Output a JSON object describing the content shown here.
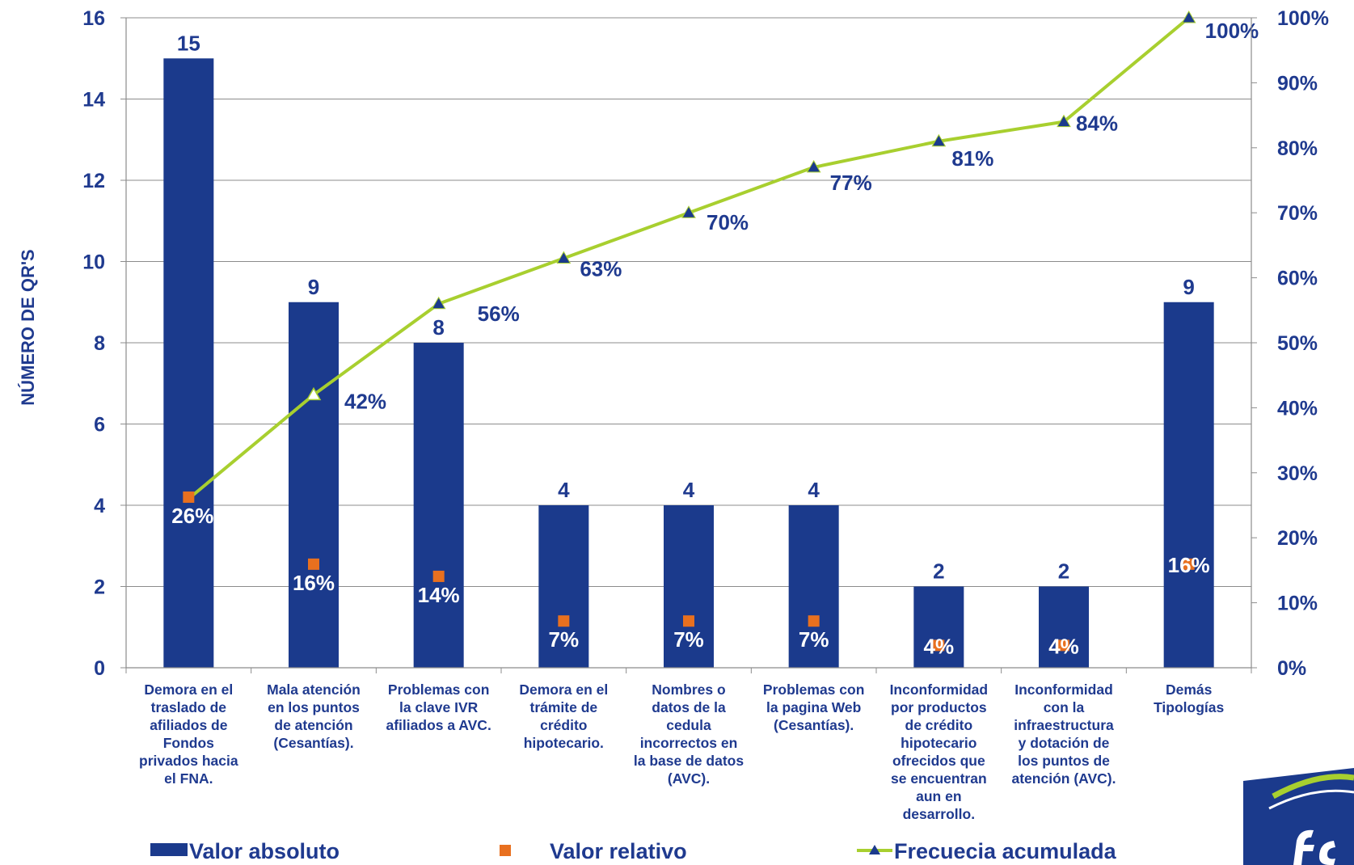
{
  "chart_data": {
    "type": "bar",
    "ylabel": "NÚMERO DE QR'S",
    "ylim": [
      0,
      16
    ],
    "yticks": [
      0,
      2,
      4,
      6,
      8,
      10,
      12,
      14,
      16
    ],
    "y2lim": [
      0,
      100
    ],
    "y2ticks": [
      "0%",
      "10%",
      "20%",
      "30%",
      "40%",
      "50%",
      "60%",
      "70%",
      "80%",
      "90%",
      "100%"
    ],
    "categories": [
      "Demora en el traslado de afiliados de Fondos privados hacia el FNA.",
      "Mala atención en los puntos de atención (Cesantías).",
      "Problemas con la clave IVR afiliados a AVC.",
      "Demora en el trámite de crédito hipotecario.",
      "Nombres o datos de la cedula incorrectos en la base de datos (AVC).",
      "Problemas con la pagina Web (Cesantías).",
      "Inconformidad por productos de crédito hipotecario ofrecidos que se encuentran aun en desarrollo.",
      "Inconformidad con la infraestructura y dotación de los puntos de atención (AVC).",
      "Demás Tipologías"
    ],
    "category_lines": [
      [
        "Demora en el",
        "traslado de",
        "afiliados de",
        "Fondos",
        "privados hacia",
        "el FNA."
      ],
      [
        "Mala atención",
        "en los puntos",
        "de atención",
        "(Cesantías)."
      ],
      [
        "Problemas con",
        "la clave IVR",
        "afiliados a AVC."
      ],
      [
        "Demora en el",
        "trámite de",
        "crédito",
        "hipotecario."
      ],
      [
        "Nombres o",
        "datos de la",
        "cedula",
        "incorrectos en",
        "la base de datos",
        "(AVC)."
      ],
      [
        "Problemas con",
        "la pagina Web",
        "(Cesantías)."
      ],
      [
        "Inconformidad",
        "por productos",
        "de crédito",
        "hipotecario",
        "ofrecidos que",
        "se encuentran",
        "aun en",
        "desarrollo."
      ],
      [
        "Inconformidad",
        "con la",
        "infraestructura",
        "y dotación de",
        "los puntos de",
        "atención (AVC)."
      ],
      [
        "Demás",
        "Tipologías"
      ]
    ],
    "series": [
      {
        "name": "Valor absoluto",
        "type": "bar",
        "axis": "left",
        "color": "#1b3a8c",
        "values": [
          15,
          9,
          8,
          4,
          4,
          4,
          2,
          2,
          9
        ],
        "labels": [
          "15",
          "9",
          "8",
          "4",
          "4",
          "4",
          "2",
          "2",
          "9"
        ]
      },
      {
        "name": "Valor relativo",
        "type": "marker",
        "axis": "left",
        "color": "#e8701f",
        "values": [
          4.2,
          2.55,
          2.25,
          1.15,
          1.15,
          1.15,
          0.55,
          0.55,
          2.55
        ],
        "labels": [
          "26%",
          "16%",
          "14%",
          "7%",
          "7%",
          "7%",
          "4%",
          "4%",
          "16%"
        ]
      },
      {
        "name": "Frecuecia acumulada",
        "type": "line",
        "axis": "right",
        "color": "#a8cf2f",
        "marker_color": "#1b3a8c",
        "values": [
          26,
          42,
          56,
          63,
          70,
          77,
          81,
          84,
          100
        ],
        "labels": [
          "",
          "42%",
          "56%",
          "63%",
          "70%",
          "77%",
          "81%",
          "84%",
          "100%"
        ]
      }
    ],
    "legend": {
      "placement": "bottom",
      "items": [
        "Valor absoluto",
        "Valor relativo",
        "Frecuecia acumulada"
      ]
    }
  }
}
